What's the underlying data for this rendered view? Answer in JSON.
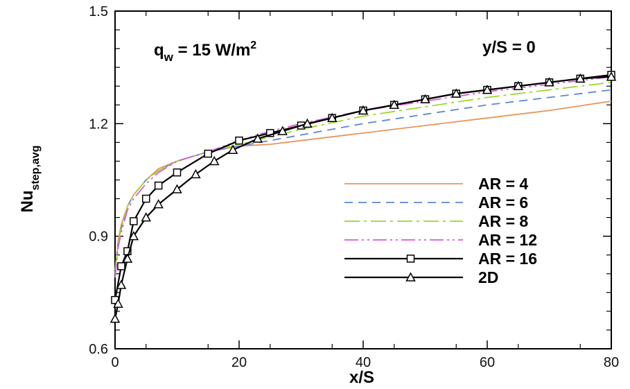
{
  "chart_data": {
    "type": "line",
    "xlabel": "x/S",
    "ylabel": {
      "main": "Nu",
      "sub": "step,avg"
    },
    "xlim": [
      0,
      80
    ],
    "ylim": [
      0.6,
      1.5
    ],
    "xticks": [
      0,
      20,
      40,
      60,
      80
    ],
    "xtick_labels": [
      "0",
      "20",
      "40",
      "60",
      "80"
    ],
    "yticks": [
      0.6,
      0.9,
      1.2,
      1.5
    ],
    "ytick_labels": [
      "0.6",
      "0.9",
      "1.2",
      "1.5"
    ],
    "grid": false,
    "legend_position": "center-right",
    "annotations": {
      "heat_flux": {
        "q": "q",
        "sub": "w",
        "rest": " = 15 W/m",
        "sup": "2"
      },
      "location": "y/S = 0"
    },
    "series": [
      {
        "name": "AR = 4",
        "color": "#e8955a",
        "dash": "solid",
        "marker": "none",
        "x": [
          0,
          0.5,
          1,
          2,
          3,
          5,
          7,
          10,
          15,
          20,
          25,
          30,
          40,
          50,
          60,
          70,
          80
        ],
        "y": [
          0.8,
          0.89,
          0.93,
          0.98,
          1.01,
          1.05,
          1.08,
          1.1,
          1.125,
          1.14,
          1.145,
          1.155,
          1.175,
          1.195,
          1.215,
          1.235,
          1.26
        ]
      },
      {
        "name": "AR = 6",
        "color": "#5b86d6",
        "dash": "12,8",
        "marker": "none",
        "x": [
          0,
          0.5,
          1,
          2,
          3,
          5,
          7,
          10,
          15,
          20,
          25,
          30,
          40,
          50,
          60,
          70,
          80
        ],
        "y": [
          0.8,
          0.88,
          0.92,
          0.98,
          1.01,
          1.05,
          1.075,
          1.1,
          1.125,
          1.14,
          1.155,
          1.17,
          1.2,
          1.225,
          1.25,
          1.27,
          1.29
        ]
      },
      {
        "name": "AR = 8",
        "color": "#9ed62a",
        "dash": "22,6,4,6",
        "marker": "none",
        "x": [
          0,
          0.5,
          1,
          2,
          3,
          5,
          7,
          10,
          15,
          20,
          25,
          30,
          40,
          50,
          60,
          70,
          80
        ],
        "y": [
          0.81,
          0.88,
          0.92,
          0.98,
          1.01,
          1.05,
          1.075,
          1.1,
          1.125,
          1.145,
          1.165,
          1.185,
          1.22,
          1.245,
          1.27,
          1.29,
          1.31
        ]
      },
      {
        "name": "AR = 12",
        "color": "#d35ad8",
        "dash": "20,5,3,5,3,5",
        "marker": "none",
        "x": [
          0,
          0.5,
          1,
          2,
          3,
          5,
          7,
          10,
          15,
          20,
          25,
          30,
          40,
          50,
          60,
          70,
          80
        ],
        "y": [
          0.79,
          0.87,
          0.91,
          0.97,
          1.0,
          1.04,
          1.07,
          1.1,
          1.125,
          1.155,
          1.18,
          1.2,
          1.235,
          1.26,
          1.285,
          1.305,
          1.325
        ]
      },
      {
        "name": "AR = 16",
        "color": "#000000",
        "dash": "solid",
        "marker": "square",
        "x": [
          0,
          1,
          2,
          3,
          5,
          7,
          10,
          15,
          20,
          25,
          30,
          35,
          40,
          45,
          50,
          55,
          60,
          65,
          70,
          75,
          80
        ],
        "y": [
          0.73,
          0.82,
          0.86,
          0.94,
          1.0,
          1.035,
          1.07,
          1.12,
          1.155,
          1.175,
          1.195,
          1.215,
          1.235,
          1.25,
          1.265,
          1.28,
          1.29,
          1.3,
          1.31,
          1.32,
          1.33
        ]
      },
      {
        "name": "2D",
        "color": "#000000",
        "dash": "solid",
        "marker": "triangle",
        "x": [
          0,
          0.5,
          1,
          2,
          3,
          5,
          7,
          10,
          13,
          16,
          19,
          23,
          27,
          31,
          35,
          40,
          45,
          50,
          55,
          60,
          65,
          70,
          75,
          80
        ],
        "y": [
          0.68,
          0.72,
          0.77,
          0.84,
          0.9,
          0.95,
          0.985,
          1.025,
          1.065,
          1.1,
          1.13,
          1.16,
          1.18,
          1.2,
          1.215,
          1.235,
          1.25,
          1.265,
          1.28,
          1.29,
          1.3,
          1.31,
          1.32,
          1.325
        ]
      }
    ]
  }
}
